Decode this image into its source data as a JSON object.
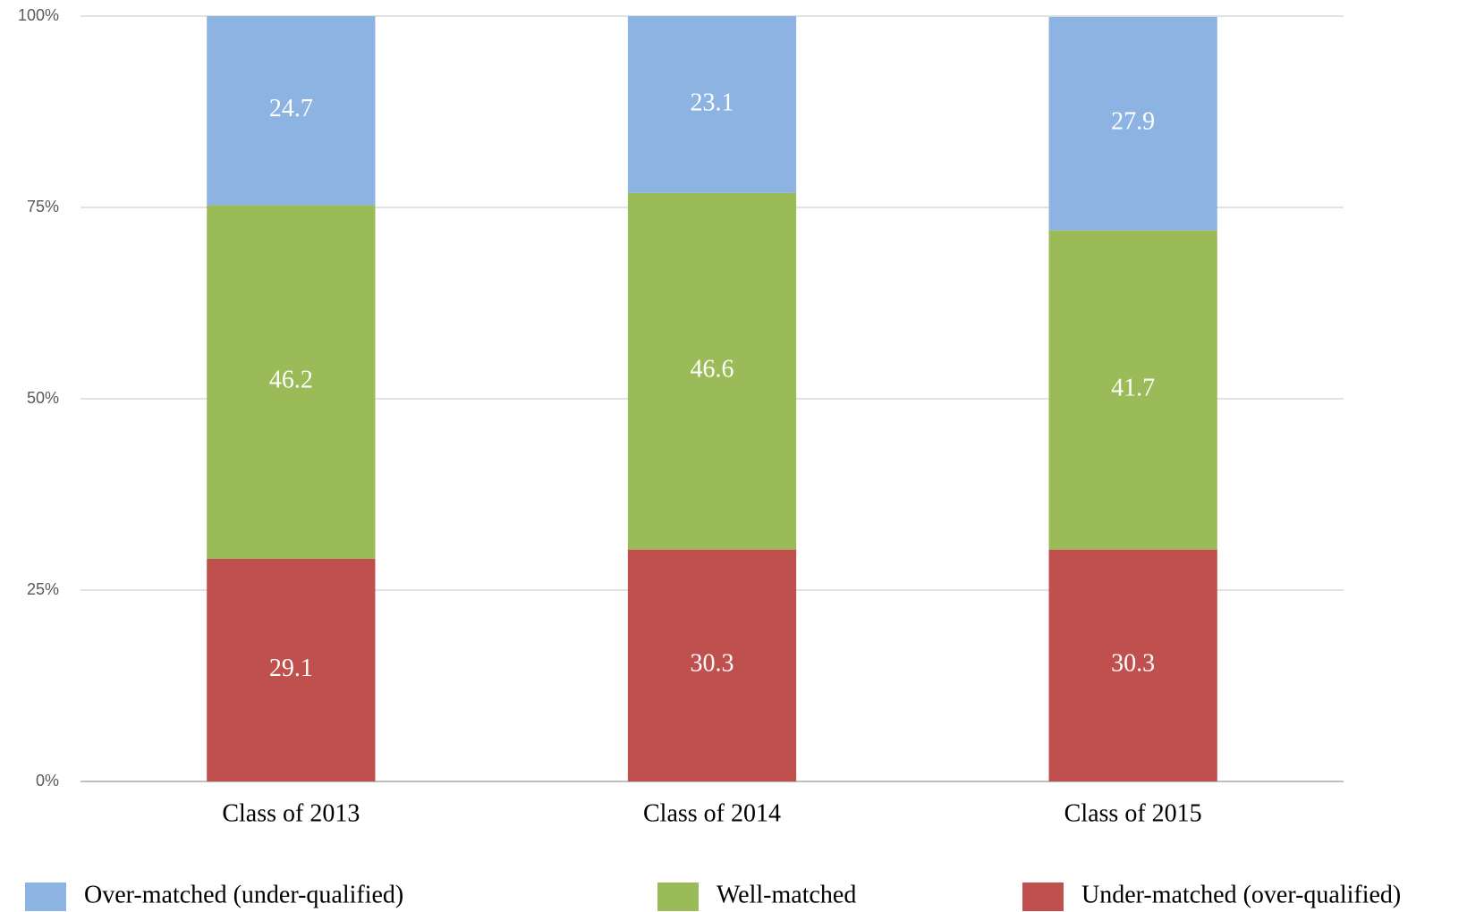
{
  "chart_data": {
    "type": "stacked_bar",
    "categories": [
      "Class of 2013",
      "Class of 2014",
      "Class of 2015"
    ],
    "series": [
      {
        "name": "Over-matched (under-qualified)",
        "color": "#8db3e2",
        "values": [
          24.7,
          23.1,
          27.9
        ]
      },
      {
        "name": "Well-matched",
        "color": "#9bbb59",
        "values": [
          46.2,
          46.6,
          41.7
        ]
      },
      {
        "name": "Under-matched (over-qualified)",
        "color": "#c0504d",
        "values": [
          29.1,
          30.3,
          30.3
        ]
      }
    ],
    "ylim": [
      0,
      100
    ],
    "yticks": [
      {
        "value": 0,
        "label": "0%"
      },
      {
        "value": 25,
        "label": "25%"
      },
      {
        "value": 50,
        "label": "50%"
      },
      {
        "value": 75,
        "label": "75%"
      },
      {
        "value": 100,
        "label": "100%"
      }
    ],
    "grid": true,
    "legend": "bottom"
  }
}
